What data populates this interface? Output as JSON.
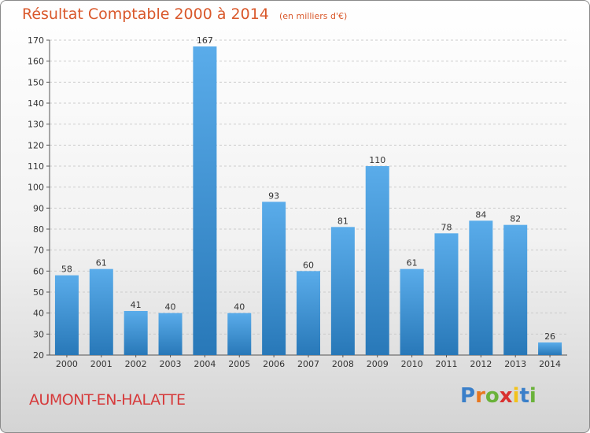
{
  "title": "Résultat Comptable 2000 à 2014",
  "unit_note": "(en milliers d'€)",
  "place": "AUMONT-EN-HALATTE",
  "logo": {
    "letters": [
      "P",
      "r",
      "o",
      "x",
      "i",
      "t",
      "i"
    ],
    "colors": [
      "#3a7fc9",
      "#e8771e",
      "#6ab23a",
      "#d9312f",
      "#f2c21c",
      "#3a7fc9",
      "#6ab23a"
    ]
  },
  "colors": {
    "bar_top": "#5aacea",
    "bar_bottom": "#2878b8",
    "grid": "#cccccc"
  },
  "chart_data": {
    "type": "bar",
    "title": "Résultat Comptable 2000 à 2014",
    "categories": [
      "2000",
      "2001",
      "2002",
      "2003",
      "2004",
      "2005",
      "2006",
      "2007",
      "2008",
      "2009",
      "2010",
      "2011",
      "2012",
      "2013",
      "2014"
    ],
    "values": [
      58,
      61,
      41,
      40,
      167,
      40,
      93,
      60,
      81,
      110,
      61,
      78,
      84,
      82,
      26
    ],
    "ylim": [
      20,
      170
    ],
    "yticks": [
      20,
      30,
      40,
      50,
      60,
      70,
      80,
      90,
      100,
      110,
      120,
      130,
      140,
      150,
      160,
      170
    ],
    "grid": true,
    "xlabel": "",
    "ylabel": ""
  }
}
